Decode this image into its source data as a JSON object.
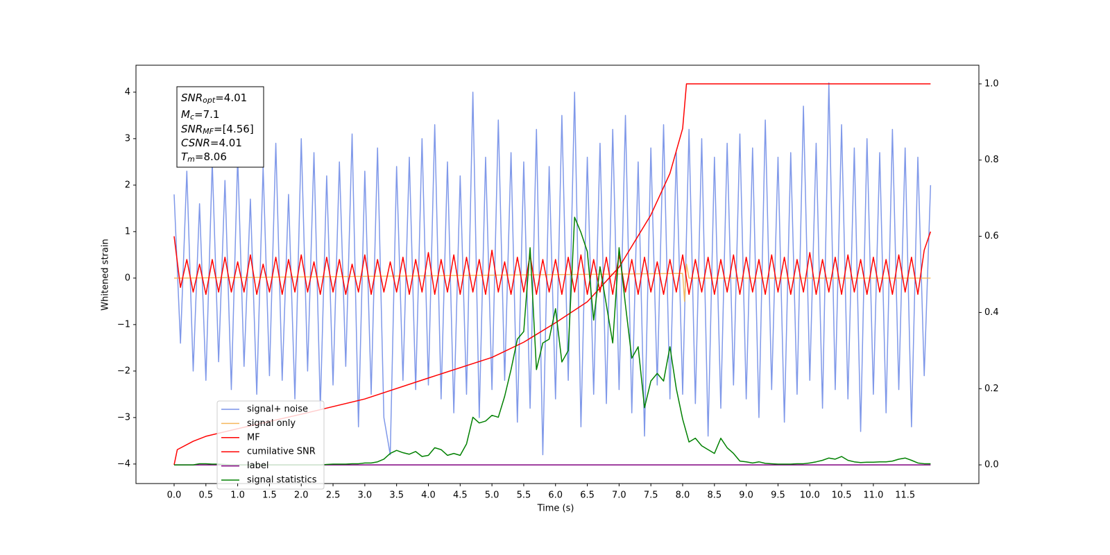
{
  "chart_data": {
    "type": "line",
    "xlabel": "Time (s)",
    "ylabel": "Whitened strain",
    "xlim": [
      -0.6,
      12.66
    ],
    "ylim": [
      -4.42,
      4.58
    ],
    "y2lim": [
      -0.049,
      1.049
    ],
    "xticks": [
      {
        "value": 0,
        "label": "0.0"
      },
      0.5,
      {
        "value": 1,
        "label": "1.0"
      },
      1.5,
      {
        "value": 2,
        "label": "2.0"
      },
      2.5,
      {
        "value": 3,
        "label": "3.0"
      },
      3.5,
      {
        "value": 4,
        "label": "4.0"
      },
      4.5,
      {
        "value": 5,
        "label": "5.0"
      },
      5.5,
      {
        "value": 6,
        "label": "6.0"
      },
      6.5,
      {
        "value": 7,
        "label": "7.0"
      },
      7.5,
      {
        "value": 8,
        "label": "8.0"
      },
      8.5,
      {
        "value": 9,
        "label": "9.0"
      },
      9.5,
      {
        "value": 10,
        "label": "10.0"
      },
      10.5,
      {
        "value": 11,
        "label": "11.0"
      },
      11.5
    ],
    "yticks": [
      {
        "value": -4,
        "label": "−4"
      },
      {
        "value": -3,
        "label": "−3"
      },
      {
        "value": -2,
        "label": "−2"
      },
      {
        "value": -1,
        "label": "−1"
      },
      0,
      1,
      2,
      3,
      4
    ],
    "y2ticks": [
      {
        "value": 0,
        "label": "0.0"
      },
      0.2,
      0.4,
      0.6,
      0.8,
      {
        "value": 1,
        "label": "1.0"
      }
    ],
    "annotation": [
      {
        "main": "SNR",
        "sub": "opt",
        "rest": "=4.01"
      },
      {
        "main": "M",
        "sub": "c",
        "rest": "=7.1"
      },
      {
        "main": "SNR",
        "sub": "MF",
        "rest": "=[4.56]"
      },
      {
        "main": "CSNR",
        "sub": "",
        "rest": "=4.01"
      },
      {
        "main": "T",
        "sub": "m",
        "rest": "=8.06"
      }
    ],
    "x": [
      0.0,
      0.1,
      0.2,
      0.3,
      0.4,
      0.5,
      0.6,
      0.7,
      0.8,
      0.9,
      1.0,
      1.1,
      1.2,
      1.3,
      1.4,
      1.5,
      1.6,
      1.7,
      1.8,
      1.9,
      2.0,
      2.1,
      2.2,
      2.3,
      2.4,
      2.5,
      2.6,
      2.7,
      2.8,
      2.9,
      3.0,
      3.1,
      3.2,
      3.3,
      3.4,
      3.5,
      3.6,
      3.7,
      3.8,
      3.9,
      4.0,
      4.1,
      4.2,
      4.3,
      4.4,
      4.5,
      4.6,
      4.7,
      4.8,
      4.9,
      5.0,
      5.1,
      5.2,
      5.3,
      5.4,
      5.5,
      5.6,
      5.7,
      5.8,
      5.9,
      6.0,
      6.1,
      6.2,
      6.3,
      6.4,
      6.5,
      6.6,
      6.7,
      6.8,
      6.9,
      7.0,
      7.1,
      7.2,
      7.3,
      7.4,
      7.5,
      7.6,
      7.7,
      7.8,
      7.9,
      8.0,
      8.1,
      8.2,
      8.3,
      8.4,
      8.5,
      8.6,
      8.7,
      8.8,
      8.9,
      9.0,
      9.1,
      9.2,
      9.3,
      9.4,
      9.5,
      9.6,
      9.7,
      9.8,
      9.9,
      10.0,
      10.1,
      10.2,
      10.3,
      10.4,
      10.5,
      10.6,
      10.7,
      10.8,
      10.9,
      11.0,
      11.1,
      11.2,
      11.3,
      11.4,
      11.5,
      11.6,
      11.7,
      11.8,
      11.9
    ],
    "series": [
      {
        "name": "signal+ noise",
        "color": "#7892e8",
        "values": [
          1.8,
          -1.4,
          2.3,
          -2.0,
          1.6,
          -2.2,
          2.5,
          -1.8,
          2.1,
          -2.4,
          2.6,
          -1.9,
          1.7,
          -2.5,
          2.4,
          -2.1,
          2.9,
          -2.2,
          1.8,
          -2.6,
          3.0,
          -2.0,
          2.7,
          -2.8,
          2.2,
          -2.3,
          2.5,
          -1.9,
          3.1,
          -3.2,
          2.3,
          -2.5,
          2.8,
          -3.0,
          -3.8,
          2.4,
          -2.2,
          2.6,
          -2.4,
          3.0,
          -2.3,
          3.3,
          -2.6,
          2.5,
          -2.9,
          2.2,
          -2.5,
          4.0,
          -3.0,
          2.6,
          -2.4,
          3.4,
          -2.2,
          2.7,
          -3.1,
          2.5,
          -2.8,
          3.2,
          -3.8,
          2.4,
          -2.6,
          3.5,
          -2.2,
          4.0,
          -3.2,
          2.6,
          -2.5,
          2.9,
          -2.7,
          3.2,
          -2.4,
          3.5,
          -2.9,
          2.5,
          -3.4,
          2.8,
          -2.3,
          3.3,
          -2.6,
          2.7,
          -2.5,
          3.2,
          -2.7,
          3.0,
          -3.4,
          2.6,
          -2.8,
          2.9,
          -2.3,
          3.1,
          -2.6,
          2.8,
          -3.0,
          3.4,
          -2.4,
          2.6,
          -3.1,
          2.7,
          -2.5,
          3.7,
          -2.2,
          2.9,
          -2.8,
          4.2,
          -2.4,
          3.3,
          -2.6,
          2.8,
          -3.3,
          3.0,
          -2.5,
          2.7,
          -2.9,
          3.2,
          -2.4,
          2.8,
          -3.2,
          2.6,
          -2.1,
          2.0
        ]
      },
      {
        "name": "signal only",
        "color": "#f5b85c",
        "x": [
          0.0,
          8.0,
          8.03,
          8.06,
          8.1,
          11.9
        ],
        "values": [
          0,
          0.1,
          -0.5,
          0.3,
          0,
          0
        ]
      },
      {
        "name": "MF",
        "color": "#ff0000",
        "values": [
          0.9,
          -0.2,
          0.4,
          -0.3,
          0.3,
          -0.35,
          0.4,
          -0.3,
          0.45,
          -0.3,
          0.35,
          -0.3,
          0.5,
          -0.35,
          0.3,
          -0.3,
          0.45,
          -0.35,
          0.4,
          -0.3,
          0.5,
          -0.3,
          0.35,
          -0.35,
          0.45,
          -0.3,
          0.4,
          -0.35,
          0.3,
          -0.3,
          0.5,
          -0.35,
          0.4,
          -0.3,
          0.35,
          -0.3,
          0.45,
          -0.35,
          0.4,
          -0.3,
          0.55,
          -0.35,
          0.4,
          -0.3,
          0.5,
          -0.35,
          0.45,
          -0.3,
          0.4,
          -0.35,
          0.6,
          -0.3,
          0.35,
          -0.35,
          0.45,
          -0.3,
          0.5,
          -0.35,
          0.4,
          -0.3,
          0.4,
          -0.35,
          0.45,
          -0.3,
          0.5,
          -0.35,
          0.4,
          -0.3,
          0.45,
          -0.35,
          0.5,
          -0.3,
          0.4,
          -0.35,
          0.45,
          -0.3,
          0.35,
          -0.35,
          0.4,
          -0.3,
          0.5,
          -0.35,
          0.4,
          -0.3,
          0.45,
          -0.35,
          0.4,
          -0.3,
          0.5,
          -0.35,
          0.45,
          -0.3,
          0.4,
          -0.35,
          0.5,
          -0.3,
          0.45,
          -0.35,
          0.4,
          -0.3,
          0.55,
          -0.35,
          0.4,
          -0.3,
          0.45,
          -0.35,
          0.5,
          -0.3,
          0.4,
          -0.35,
          0.45,
          -0.3,
          0.4,
          -0.35,
          0.5,
          -0.3,
          0.45,
          -0.35,
          0.6,
          1.0
        ]
      },
      {
        "name": "cumilative SNR",
        "color": "#ff0000",
        "axis": "y2",
        "x": [
          0.0,
          0.05,
          0.3,
          0.5,
          1.0,
          2.0,
          3.0,
          4.0,
          5.0,
          5.5,
          6.0,
          6.5,
          7.0,
          7.5,
          7.8,
          8.0,
          8.06,
          11.9
        ],
        "values": [
          0.0,
          0.04,
          0.062,
          0.075,
          0.095,
          0.133,
          0.173,
          0.228,
          0.282,
          0.322,
          0.373,
          0.428,
          0.519,
          0.656,
          0.765,
          0.883,
          1.0,
          1.0
        ]
      },
      {
        "name": "label",
        "color": "#800080",
        "axis": "y2",
        "x": [
          0.0,
          11.9
        ],
        "values": [
          0,
          0
        ]
      },
      {
        "name": "signal statistics",
        "color": "#008000",
        "axis": "y2",
        "values": [
          0.0,
          0.0,
          0.0,
          0.0,
          0.003,
          0.003,
          0.002,
          0.002,
          0.001,
          0.0,
          0.0,
          0.0,
          0.0,
          0.0,
          0.0,
          0.0,
          0.0,
          0.0,
          0.0,
          0.0,
          0.0,
          0.0,
          0.0,
          0.0,
          0.001,
          0.002,
          0.002,
          0.002,
          0.003,
          0.003,
          0.005,
          0.005,
          0.008,
          0.015,
          0.03,
          0.038,
          0.032,
          0.028,
          0.035,
          0.022,
          0.025,
          0.045,
          0.04,
          0.025,
          0.03,
          0.025,
          0.055,
          0.125,
          0.11,
          0.115,
          0.13,
          0.125,
          0.18,
          0.25,
          0.33,
          0.35,
          0.57,
          0.25,
          0.32,
          0.33,
          0.41,
          0.27,
          0.3,
          0.65,
          0.61,
          0.56,
          0.38,
          0.52,
          0.42,
          0.32,
          0.57,
          0.42,
          0.28,
          0.31,
          0.15,
          0.22,
          0.24,
          0.22,
          0.31,
          0.2,
          0.12,
          0.06,
          0.07,
          0.05,
          0.04,
          0.03,
          0.07,
          0.045,
          0.03,
          0.01,
          0.008,
          0.005,
          0.008,
          0.004,
          0.003,
          0.002,
          0.002,
          0.002,
          0.003,
          0.003,
          0.005,
          0.008,
          0.012,
          0.018,
          0.015,
          0.022,
          0.012,
          0.008,
          0.006,
          0.007,
          0.007,
          0.008,
          0.008,
          0.01,
          0.015,
          0.018,
          0.012,
          0.005,
          0.003,
          0.003
        ]
      }
    ]
  }
}
